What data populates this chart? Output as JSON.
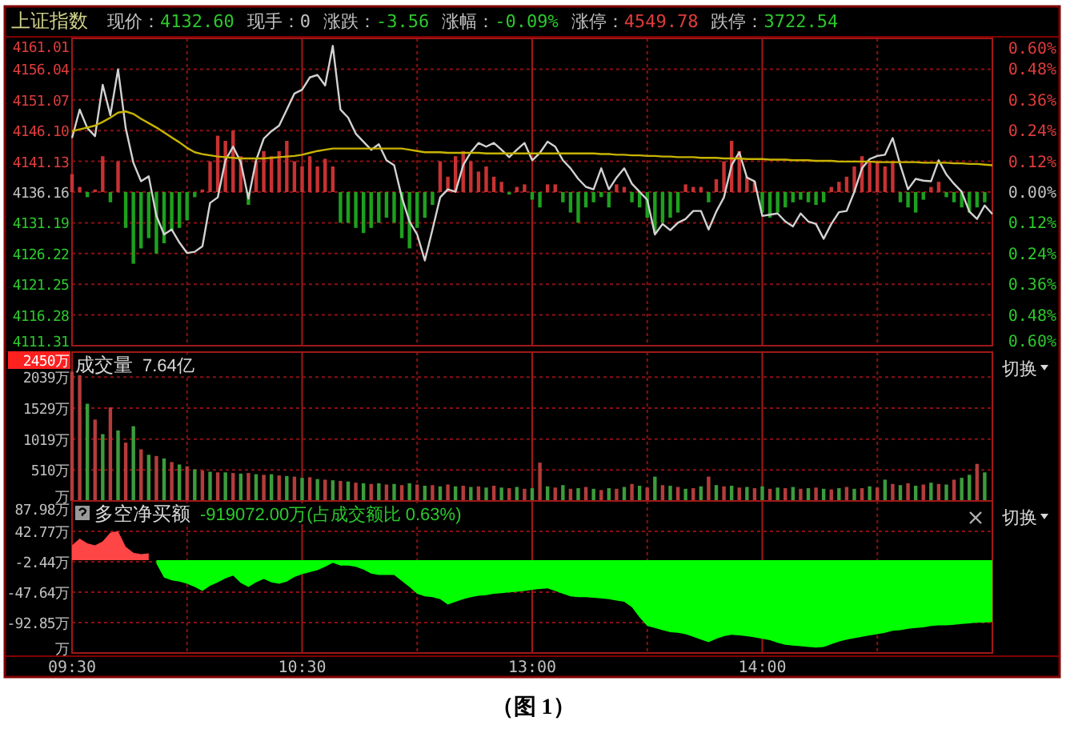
{
  "chart_data": [
    {
      "type": "line",
      "title": "上证指数",
      "annotations": [
        "现价：4132.60",
        "现手：0",
        "涨跌：-3.56",
        "涨幅：-0.09%",
        "涨停：4549.78",
        "跌停：3722.54"
      ],
      "categories": [
        null,
        null,
        null,
        null,
        null,
        null,
        null,
        null,
        null,
        null,
        null,
        null,
        null,
        null,
        null,
        null,
        null,
        null,
        null,
        null,
        null,
        null,
        null,
        null,
        null,
        null,
        null,
        null,
        null,
        null,
        null,
        null,
        null,
        null,
        null,
        null,
        null,
        null,
        null,
        null,
        null,
        null,
        null,
        null,
        null,
        null,
        null,
        null,
        null,
        null,
        null,
        null,
        null,
        null,
        null,
        null,
        null,
        null,
        null,
        null,
        null,
        null,
        null,
        null,
        null,
        null,
        null,
        null,
        null,
        null,
        null,
        null,
        null,
        null,
        null,
        null,
        null,
        null,
        null,
        null,
        null,
        null,
        null,
        null,
        null,
        null,
        null,
        null,
        null,
        null,
        null,
        null,
        null,
        null,
        null,
        null,
        null,
        null,
        null,
        null,
        null,
        null,
        null,
        null,
        null,
        null,
        null,
        null,
        null,
        null,
        null,
        null,
        null,
        null,
        null,
        null,
        null,
        null,
        null,
        null,
        null
      ],
      "ylim": [
        4111.31,
        4161.01
      ],
      "yticks": [
        4111.31,
        4116.28,
        4121.25,
        4126.22,
        4131.19,
        4136.16,
        4141.13,
        {
          "value": 4146.1,
          "label": "4146.10"
        },
        4151.07,
        4156.04,
        4161.01
      ],
      "y2lim": [
        -0.6,
        0.6
      ],
      "y2ticks": [
        {
          "value": -0.6,
          "label": "0.60%"
        },
        {
          "value": -0.48,
          "label": "0.48%"
        },
        {
          "value": -0.36,
          "label": "0.36%"
        },
        {
          "value": -0.24,
          "label": "0.24%"
        },
        {
          "value": -0.12,
          "label": "0.12%"
        },
        {
          "value": 0,
          "label": "0.00%"
        },
        {
          "value": 0.12,
          "label": "0.12%"
        },
        {
          "value": 0.24,
          "label": "0.24%"
        },
        {
          "value": 0.36,
          "label": "0.36%"
        },
        {
          "value": 0.48,
          "label": "0.48%"
        },
        {
          "value": 0.6,
          "label": "0.60%"
        }
      ],
      "tick_labels": "y",
      "grid": true,
      "series": [
        {
          "type": "bar",
          "axis": "y2",
          "color": "#c83232",
          "values": [
            0.07,
            0.02,
            null,
            0.01,
            0.14,
            null,
            0.12,
            null,
            null,
            null,
            null,
            null,
            null,
            null,
            null,
            null,
            null,
            0.01,
            0.12,
            0.22,
            0.2,
            0.24,
            0.14,
            null,
            0.12,
            0.16,
            0.14,
            0.16,
            0.2,
            0.12,
            0.1,
            0.14,
            0.1,
            0.13,
            0.1,
            null,
            null,
            null,
            null,
            null,
            null,
            null,
            null,
            null,
            null,
            null,
            null,
            null,
            0.12,
            0.06,
            0.14,
            0.16,
            0.12,
            0.08,
            0.1,
            0.06,
            0.04,
            null,
            0.02,
            0.03,
            null,
            null,
            0.03,
            0.03,
            null,
            null,
            null,
            null,
            null,
            null,
            null,
            0.03,
            0.02,
            null,
            null,
            null,
            null,
            null,
            null,
            null,
            0.03,
            0.02,
            0.02,
            null,
            0.05,
            0.12,
            0.2,
            0.16,
            0.06,
            0.04,
            null,
            null,
            null,
            null,
            null,
            null,
            null,
            null,
            null,
            0.02,
            0.04,
            0.06,
            0.1,
            0.14,
            0.12,
            0.12,
            0.1,
            0.12,
            null,
            null,
            null,
            null,
            0.02,
            0.04,
            null,
            null,
            null,
            null,
            null,
            null,
            null
          ]
        },
        {
          "type": "bar",
          "axis": "y2",
          "color": "#1ea01e",
          "values": [
            null,
            null,
            -0.02,
            null,
            null,
            -0.04,
            null,
            -0.14,
            -0.28,
            -0.22,
            -0.18,
            -0.24,
            -0.2,
            -0.15,
            -0.14,
            -0.11,
            -0.02,
            null,
            null,
            null,
            null,
            null,
            null,
            -0.05,
            null,
            null,
            null,
            null,
            null,
            null,
            null,
            null,
            null,
            null,
            null,
            -0.12,
            -0.12,
            -0.14,
            -0.16,
            -0.14,
            -0.12,
            -0.1,
            -0.12,
            -0.18,
            -0.22,
            -0.14,
            -0.1,
            -0.05,
            null,
            null,
            null,
            null,
            null,
            null,
            null,
            null,
            null,
            -0.01,
            null,
            null,
            -0.03,
            -0.06,
            null,
            null,
            -0.04,
            -0.08,
            -0.12,
            -0.06,
            -0.04,
            -0.02,
            -0.06,
            null,
            null,
            -0.04,
            -0.06,
            -0.1,
            -0.16,
            -0.12,
            -0.1,
            -0.08,
            null,
            null,
            null,
            -0.04,
            null,
            null,
            null,
            null,
            null,
            null,
            -0.08,
            -0.1,
            -0.08,
            -0.06,
            -0.04,
            -0.03,
            -0.04,
            -0.05,
            -0.04,
            null,
            null,
            null,
            null,
            null,
            null,
            null,
            null,
            null,
            -0.04,
            -0.06,
            -0.08,
            -0.03,
            null,
            null,
            -0.02,
            -0.04,
            -0.06,
            -0.08,
            -0.06,
            -0.04,
            null
          ]
        },
        {
          "color": "#d2d2d2",
          "values": [
            4144.9,
            4149.5,
            4146.5,
            4145.2,
            4153.5,
            4148.6,
            4156.0,
            4146.5,
            4140.9,
            4137.9,
            4138.7,
            4132.3,
            4129.3,
            4130.1,
            4128.0,
            4126.3,
            4126.5,
            4127.4,
            4134.4,
            4135.3,
            4141.3,
            4143.5,
            4141.0,
            4135.1,
            4141.3,
            4144.8,
            4146.0,
            4146.9,
            4149.5,
            4152.1,
            4152.7,
            4154.7,
            4155.1,
            4153.4,
            4159.8,
            4149.5,
            4148.2,
            4145.6,
            4144.3,
            4143.0,
            4143.9,
            4141.3,
            4140.5,
            4135.3,
            4131.4,
            4129.3,
            4125.1,
            4130.1,
            4135.3,
            4136.6,
            4136.2,
            4140.5,
            4142.6,
            4144.1,
            4143.5,
            4144.1,
            4143.0,
            4141.8,
            4143.0,
            4144.1,
            4141.3,
            4142.5,
            4144.3,
            4143.5,
            4141.3,
            4140.0,
            4138.3,
            4137.0,
            4136.6,
            4140.0,
            4136.6,
            4138.5,
            4140.0,
            4137.5,
            4136.2,
            4134.9,
            4129.3,
            4131.0,
            4130.0,
            4131.2,
            4131.8,
            4133.1,
            4133.1,
            4130.1,
            4133.0,
            4135.3,
            4140.5,
            4142.6,
            4138.5,
            4137.9,
            4132.3,
            4132.5,
            4132.7,
            4131.4,
            4130.6,
            4132.7,
            4131.4,
            4131.0,
            4128.6,
            4131.0,
            4132.9,
            4133.1,
            4136.2,
            4140.0,
            4141.5,
            4142.0,
            4142.2,
            4144.9,
            4140.5,
            4136.6,
            4138.3,
            4138.0,
            4137.9,
            4141.3,
            4139.0,
            4137.5,
            4136.2,
            4133.0,
            4131.8,
            4134.0,
            4132.6
          ]
        },
        {
          "type": "line",
          "color": "#c8b400",
          "values": [
            4146.0,
            4146.3,
            4146.6,
            4146.9,
            4147.5,
            4148.2,
            4149.0,
            4149.2,
            4148.8,
            4148.0,
            4147.3,
            4146.6,
            4145.8,
            4145.0,
            4144.2,
            4143.3,
            4142.6,
            4142.3,
            4142.1,
            4141.9,
            4141.8,
            4141.7,
            4141.6,
            4141.6,
            4141.6,
            4141.6,
            4141.7,
            4141.8,
            4141.9,
            4142.0,
            4142.2,
            4142.5,
            4142.8,
            4143.0,
            4143.2,
            4143.2,
            4143.2,
            4143.2,
            4143.2,
            4143.2,
            4143.2,
            4143.2,
            4143.2,
            4143.2,
            4143.0,
            4142.8,
            4142.6,
            4142.6,
            4142.6,
            4142.5,
            4142.5,
            4142.5,
            4142.5,
            4142.5,
            4142.4,
            4142.4,
            4142.4,
            4142.4,
            4142.4,
            4142.4,
            4142.4,
            4142.4,
            4142.4,
            4142.4,
            4142.4,
            4142.4,
            4142.4,
            4142.4,
            4142.4,
            4142.3,
            4142.3,
            4142.2,
            4142.2,
            4142.1,
            4142.1,
            4142.0,
            4142.0,
            4141.9,
            4141.9,
            4141.8,
            4141.8,
            4141.8,
            4141.7,
            4141.7,
            4141.7,
            4141.6,
            4141.6,
            4141.6,
            4141.5,
            4141.5,
            4141.5,
            4141.4,
            4141.4,
            4141.4,
            4141.3,
            4141.3,
            4141.3,
            4141.2,
            4141.2,
            4141.2,
            4141.1,
            4141.1,
            4141.1,
            4141.1,
            4141.1,
            4141.0,
            4141.0,
            4141.0,
            4141.0,
            4141.0,
            4141.0,
            4140.9,
            4140.9,
            4140.9,
            4140.9,
            4140.8,
            4140.8,
            4140.7,
            4140.7,
            4140.6,
            4140.5
          ]
        }
      ]
    },
    {
      "type": "bar",
      "title": "成交量",
      "subtitle": "7.64亿",
      "annotations": [
        "切换"
      ],
      "categories": [
        null,
        null,
        null,
        null,
        null,
        null,
        null,
        null,
        null,
        null,
        null,
        null,
        null,
        null,
        null,
        null,
        null,
        null,
        null,
        null,
        null,
        null,
        null,
        null,
        null,
        null,
        null,
        null,
        null,
        null,
        null,
        null,
        null,
        null,
        null,
        null,
        null,
        null,
        null,
        null,
        null,
        null,
        null,
        null,
        null,
        null,
        null,
        null,
        null,
        null,
        null,
        null,
        null,
        null,
        null,
        null,
        null,
        null,
        null,
        null,
        null,
        null,
        null,
        null,
        null,
        null,
        null,
        null,
        null,
        null,
        null,
        null,
        null,
        null,
        null,
        null,
        null,
        null,
        null,
        null,
        null,
        null,
        null,
        null,
        null,
        null,
        null,
        null,
        null,
        null,
        null,
        null,
        null,
        null,
        null,
        null,
        null,
        null,
        null,
        null,
        null,
        null,
        null,
        null,
        null,
        null,
        null,
        null,
        null,
        null,
        null,
        null,
        null,
        null,
        null,
        null,
        null,
        null,
        null,
        null,
        null
      ],
      "ylim": [
        0,
        2450
      ],
      "yticks": [
        {
          "value": 0,
          "label": "万"
        },
        {
          "value": 510,
          "label": "510万"
        },
        {
          "value": 1019,
          "label": "1019万"
        },
        {
          "value": 1529,
          "label": "1529万"
        },
        {
          "value": 2039,
          "label": "2039万"
        },
        {
          "value": 2450,
          "label": "2450万"
        }
      ],
      "tick_labels": "y",
      "grid": true,
      "series": [
        {
          "color": "#b43c3c",
          "values": [
            2130,
            2110,
            null,
            1340,
            null,
            1540,
            null,
            960,
            null,
            850,
            null,
            740,
            null,
            640,
            null,
            570,
            null,
            500,
            null,
            470,
            null,
            460,
            null,
            460,
            null,
            430,
            null,
            420,
            null,
            400,
            null,
            390,
            null,
            350,
            null,
            330,
            null,
            300,
            null,
            280,
            null,
            270,
            null,
            260,
            null,
            270,
            null,
            260,
            null,
            270,
            null,
            250,
            null,
            240,
            null,
            250,
            null,
            210,
            null,
            200,
            null,
            630,
            null,
            220,
            null,
            200,
            null,
            230,
            null,
            180,
            null,
            200,
            null,
            280,
            null,
            220,
            null,
            260,
            null,
            230,
            null,
            210,
            null,
            400,
            null,
            240,
            null,
            220,
            null,
            210,
            null,
            200,
            null,
            210,
            null,
            200,
            null,
            220,
            null,
            190,
            null,
            230,
            null,
            210,
            null,
            220,
            null,
            280,
            null,
            290,
            null,
            270,
            null,
            280,
            null,
            350,
            null,
            null,
            610,
            null,
            null
          ]
        },
        {
          "color": "#3c9c3c",
          "values": [
            null,
            null,
            1600,
            null,
            1100,
            null,
            1160,
            null,
            1230,
            null,
            760,
            null,
            700,
            null,
            600,
            null,
            520,
            null,
            480,
            null,
            470,
            null,
            450,
            null,
            440,
            null,
            440,
            null,
            410,
            null,
            380,
            null,
            360,
            null,
            340,
            null,
            320,
            null,
            290,
            null,
            290,
            null,
            280,
            null,
            290,
            null,
            250,
            null,
            240,
            null,
            240,
            null,
            230,
            null,
            220,
            null,
            220,
            null,
            230,
            null,
            210,
            null,
            240,
            null,
            260,
            null,
            210,
            null,
            200,
            null,
            210,
            null,
            230,
            null,
            250,
            null,
            400,
            null,
            250,
            null,
            200,
            null,
            240,
            null,
            260,
            null,
            250,
            null,
            230,
            null,
            240,
            null,
            220,
            null,
            230,
            null,
            210,
            null,
            200,
            null,
            210,
            null,
            200,
            null,
            240,
            null,
            350,
            null,
            260,
            null,
            250,
            null,
            300,
            null,
            270,
            null,
            380,
            430,
            null,
            470,
            null
          ]
        }
      ]
    },
    {
      "type": "area",
      "title": "多空净买额",
      "subtitle": "-919072.00万(占成交额比 0.63%)",
      "annotations": [
        "切换",
        "（图 1）"
      ],
      "categories": [
        "09:30",
        null,
        null,
        null,
        null,
        null,
        null,
        null,
        null,
        null,
        null,
        null,
        null,
        null,
        null,
        null,
        null,
        null,
        null,
        null,
        null,
        null,
        null,
        null,
        null,
        null,
        null,
        null,
        null,
        null,
        "10:30",
        null,
        null,
        null,
        null,
        null,
        null,
        null,
        null,
        null,
        null,
        null,
        null,
        null,
        null,
        null,
        null,
        null,
        null,
        null,
        null,
        null,
        null,
        null,
        null,
        null,
        null,
        null,
        null,
        null,
        "13:00",
        null,
        null,
        null,
        null,
        null,
        null,
        null,
        null,
        null,
        null,
        null,
        null,
        null,
        null,
        null,
        null,
        null,
        null,
        null,
        null,
        null,
        null,
        null,
        null,
        null,
        null,
        null,
        null,
        null,
        "14:00",
        null,
        null,
        null,
        null,
        null,
        null,
        null,
        null,
        null,
        null,
        null,
        null,
        null,
        null,
        null,
        null,
        null,
        null,
        null,
        null,
        null,
        null,
        null,
        null,
        null,
        null,
        null,
        null,
        null,
        null
      ],
      "ylim": [
        -138.06,
        87.98
      ],
      "yticks": [
        {
          "value": -138.06,
          "label": "万"
        },
        {
          "value": -92.85,
          "label": "-92.85万"
        },
        {
          "value": -47.64,
          "label": "-47.64万"
        },
        {
          "value": -2.44,
          "label": "-2.44万"
        },
        {
          "value": 42.77,
          "label": "42.77万"
        },
        {
          "value": 87.98,
          "label": "87.98万"
        }
      ],
      "grid": true,
      "series": [
        {
          "color": "#ff4646",
          "values": [
            22,
            32,
            25,
            22,
            28,
            41,
            43,
            20,
            11,
            9,
            10,
            null,
            null,
            null,
            null,
            null,
            null,
            null,
            null,
            null,
            null,
            null,
            null,
            null,
            null,
            null,
            null,
            null,
            null,
            null,
            null,
            null,
            null,
            null,
            null,
            null,
            null,
            null,
            null,
            null,
            null,
            null,
            null,
            null,
            null,
            null,
            null,
            null,
            null,
            null,
            null,
            null,
            null,
            null,
            null,
            null,
            null,
            null,
            null,
            null,
            null,
            null,
            null,
            null,
            null,
            null,
            null,
            null,
            null,
            null,
            null,
            null,
            null,
            null,
            null,
            null,
            null,
            null,
            null,
            null,
            null,
            null,
            null,
            null,
            null,
            null,
            null,
            null,
            null,
            null,
            null,
            null,
            null,
            null,
            null,
            null,
            null,
            null,
            null,
            null,
            null,
            null,
            null,
            null,
            null,
            null,
            null,
            null,
            null,
            null,
            null,
            null,
            null,
            null,
            null,
            null,
            null,
            null,
            null,
            null,
            null
          ]
        },
        {
          "color": "#00ff00",
          "values": [
            null,
            null,
            null,
            null,
            null,
            null,
            null,
            null,
            null,
            null,
            null,
            -5,
            -26,
            -30,
            -32,
            -35,
            -40,
            -46,
            -38,
            -33,
            -27,
            -23,
            -34,
            -40,
            -33,
            -28,
            -33,
            -35,
            -32,
            -25,
            -21,
            -18,
            -15,
            -10,
            -4,
            -8,
            -8,
            -10,
            -14,
            -20,
            -22,
            -22,
            -22,
            -31,
            -40,
            -50,
            -54,
            -55,
            -58,
            -66,
            -62,
            -58,
            -55,
            -53,
            -52,
            -50,
            -49,
            -48,
            -47,
            -46,
            -44,
            -43,
            -42,
            -46,
            -50,
            -54,
            -55,
            -55,
            -56,
            -57,
            -58,
            -60,
            -62,
            -70,
            -85,
            -98,
            -101,
            -104,
            -107,
            -108,
            -110,
            -114,
            -118,
            -122,
            -117,
            -113,
            -111,
            -112,
            -113,
            -115,
            -117,
            -119,
            -123,
            -126,
            -127,
            -128,
            -129,
            -130,
            -129,
            -125,
            -121,
            -118,
            -116,
            -114,
            -112,
            -110,
            -108,
            -105,
            -104,
            -102,
            -101,
            -100,
            -98,
            -97,
            -97,
            -96,
            -95,
            -94,
            -93,
            -93,
            -92
          ]
        }
      ]
    }
  ]
}
